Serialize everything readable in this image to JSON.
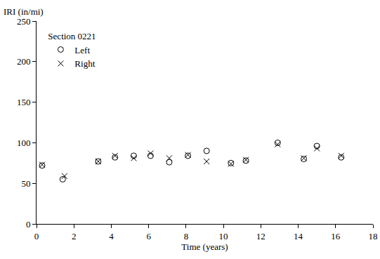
{
  "chart_data": {
    "type": "scatter",
    "legend_title": "Section 0221",
    "x_label": "Time (years)",
    "y_label": "IRI (in/mi)",
    "xlim": [
      0,
      18
    ],
    "xticks": [
      0,
      2,
      4,
      6,
      8,
      10,
      12,
      14,
      16,
      18
    ],
    "ylim": [
      0,
      250
    ],
    "yticks": [
      0,
      50,
      100,
      150,
      200,
      250
    ],
    "grid": false,
    "legend": "top-left",
    "series": [
      {
        "name": "Left",
        "color": "#000000",
        "marker": "circle-open",
        "x": [
          0.3,
          1.4,
          3.3,
          4.2,
          5.2,
          6.1,
          7.1,
          8.1,
          9.1,
          10.4,
          11.2,
          12.9,
          14.3,
          15.0,
          16.3
        ],
        "values": [
          72,
          55,
          77,
          82,
          84,
          84,
          76,
          84,
          90,
          75,
          78,
          100,
          80,
          96,
          82
        ]
      },
      {
        "name": "Right",
        "color": "#000000",
        "marker": "x",
        "x": [
          0.3,
          1.5,
          3.3,
          4.2,
          5.2,
          6.1,
          7.1,
          8.1,
          9.1,
          10.4,
          11.2,
          12.9,
          14.3,
          15.0,
          16.3
        ],
        "values": [
          73,
          59,
          77,
          84,
          81,
          87,
          81,
          85,
          77,
          74,
          79,
          98,
          81,
          93,
          84
        ]
      }
    ]
  }
}
